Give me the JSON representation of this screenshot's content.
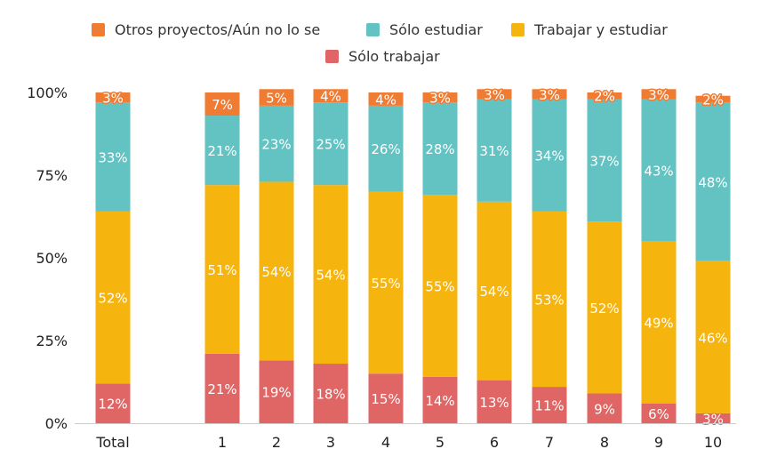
{
  "chart_data": {
    "type": "bar",
    "stacked": true,
    "percent": true,
    "categories": [
      "Total",
      "1",
      "2",
      "3",
      "4",
      "5",
      "6",
      "7",
      "8",
      "9",
      "10"
    ],
    "series": [
      {
        "name": "Sólo trabajar",
        "color": "#e06666",
        "values": [
          12,
          21,
          19,
          18,
          15,
          14,
          13,
          11,
          9,
          6,
          3
        ]
      },
      {
        "name": "Trabajar y estudiar",
        "color": "#f6b40e",
        "values": [
          52,
          51,
          54,
          54,
          55,
          55,
          54,
          53,
          52,
          49,
          46
        ]
      },
      {
        "name": "Sólo estudiar",
        "color": "#63c2c2",
        "values": [
          33,
          21,
          23,
          25,
          26,
          28,
          31,
          34,
          37,
          43,
          48
        ]
      },
      {
        "name": "Otros proyectos/Aún no lo se",
        "color": "#f07c34",
        "values": [
          3,
          7,
          5,
          4,
          4,
          3,
          3,
          3,
          2,
          3,
          2
        ]
      }
    ],
    "legend_order": [
      "Otros proyectos/Aún no lo se",
      "Sólo estudiar",
      "Trabajar y estudiar",
      "Sólo trabajar"
    ],
    "legend_position": "top",
    "y_ticks": [
      "0%",
      "25%",
      "50%",
      "75%",
      "100%"
    ],
    "ylim": [
      0,
      100
    ],
    "grid": false
  }
}
